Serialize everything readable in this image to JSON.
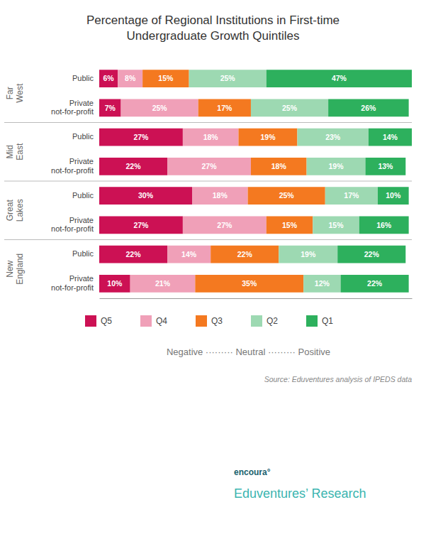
{
  "chart_data": {
    "type": "bar",
    "orientation": "horizontal",
    "stacked": true,
    "data_labels": true,
    "tick_labels": false,
    "title": "Percentage of Regional Institutions in First-time\nUndergraduate Growth Quintiles",
    "categories": [
      "Public",
      "Private\nnot-for-profit",
      "Public",
      "Private\nnot-for-profit",
      "Public",
      "Private\nnot-for-profit",
      "Public",
      "Private\nnot-for-profit"
    ],
    "category_groups": [
      "Far\nWest",
      "Far\nWest",
      "Mid\nEast",
      "Mid\nEast",
      "Great\nLakes",
      "Great\nLakes",
      "New\nEngland",
      "New\nEngland"
    ],
    "series": [
      {
        "name": "Q5",
        "color": "#cc1154",
        "values": [
          6,
          7,
          27,
          22,
          30,
          27,
          22,
          10
        ],
        "value_labels": [
          "6%",
          "7%",
          "27%",
          "22%",
          "30%",
          "27%",
          "22%",
          "10%"
        ]
      },
      {
        "name": "Q4",
        "color": "#f0a0b8",
        "values": [
          8,
          25,
          18,
          27,
          18,
          27,
          14,
          21
        ],
        "value_labels": [
          "8%",
          "25%",
          "18%",
          "27%",
          "18%",
          "27%",
          "14%",
          "21%"
        ]
      },
      {
        "name": "Q3",
        "color": "#f47920",
        "values": [
          15,
          17,
          19,
          18,
          25,
          15,
          22,
          35
        ],
        "value_labels": [
          "15%",
          "17%",
          "19%",
          "18%",
          "25%",
          "15%",
          "22%",
          "35%"
        ]
      },
      {
        "name": "Q2",
        "color": "#9dd9b2",
        "values": [
          25,
          25,
          23,
          19,
          17,
          15,
          19,
          12
        ],
        "value_labels": [
          "25%",
          "25%",
          "23%",
          "19%",
          "17%",
          "15%",
          "19%",
          "12%"
        ]
      },
      {
        "name": "Q1",
        "color": "#2db05d",
        "values": [
          47,
          26,
          14,
          13,
          10,
          16,
          22,
          22
        ],
        "value_labels": [
          "47%",
          "26%",
          "14%",
          "13%",
          "10%",
          "16%",
          "22%",
          "22%"
        ]
      }
    ],
    "xlim": [
      0,
      101
    ],
    "annotations": [
      "Negative ········· Neutral ········· Positive",
      "Source: Eduventures analysis of IPEDS data",
      "encoura°",
      "Eduventures’ Research"
    ]
  }
}
